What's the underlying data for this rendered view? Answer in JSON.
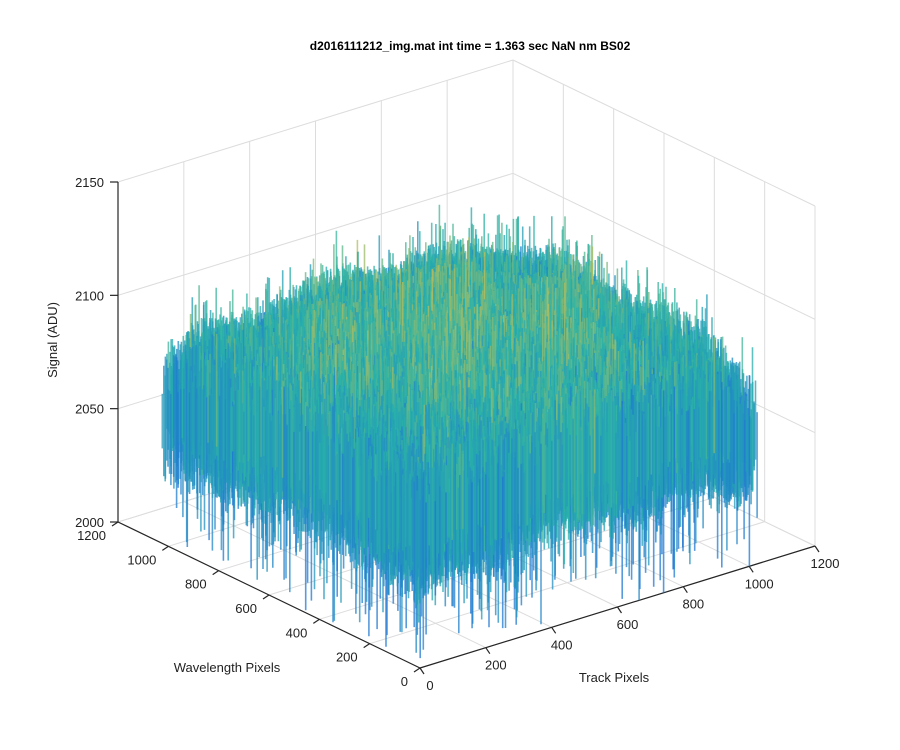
{
  "chart_data": {
    "type": "surface",
    "title": "d2016111212_img.mat int time = 1.363 sec  NaN nm BS02",
    "xlabel": "Track Pixels",
    "ylabel": "Wavelength Pixels",
    "zlabel": "Signal (ADU)",
    "xlim": [
      0,
      1200
    ],
    "ylim": [
      0,
      1200
    ],
    "zlim": [
      2000,
      2150
    ],
    "xticks": [
      "0",
      "200",
      "400",
      "600",
      "800",
      "1000",
      "1200"
    ],
    "yticks": [
      "0",
      "200",
      "400",
      "600",
      "800",
      "1000",
      "1200"
    ],
    "zticks": [
      "2000",
      "2050",
      "2100",
      "2150"
    ],
    "grid": true,
    "colormap": "parula",
    "colors": {
      "low": "#1f78d2",
      "mid": "#29b3a8",
      "high": "#f4c13a"
    },
    "surface_extent": {
      "x": [
        0,
        1024
      ],
      "y": [
        0,
        1024
      ]
    },
    "typical_range": [
      2040,
      2110
    ]
  }
}
